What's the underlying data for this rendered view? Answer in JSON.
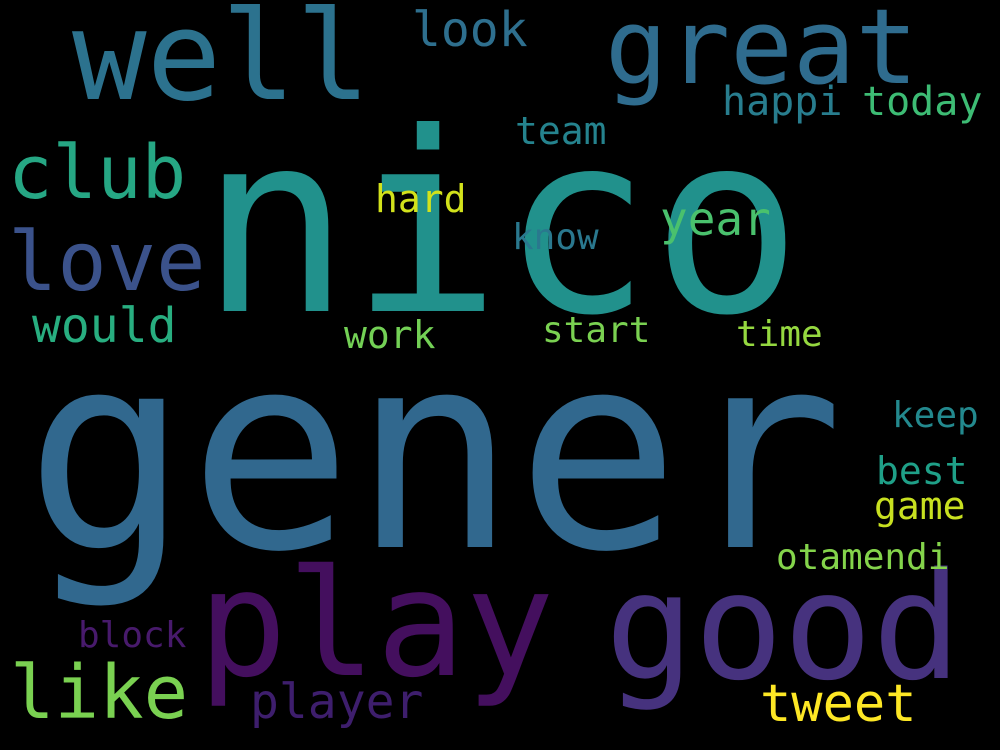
{
  "background": "#000000",
  "words": [
    {
      "id": "gener",
      "text": "gener",
      "color": "#31688e"
    },
    {
      "id": "nico",
      "text": "nico",
      "color": "#21918c"
    },
    {
      "id": "play",
      "text": "play",
      "color": "#440f5e"
    },
    {
      "id": "good",
      "text": "good",
      "color": "#46327e"
    },
    {
      "id": "well",
      "text": "well",
      "color": "#2c728e"
    },
    {
      "id": "great",
      "text": "great",
      "color": "#2f6c8e"
    },
    {
      "id": "love",
      "text": "love",
      "color": "#3b528b"
    },
    {
      "id": "club",
      "text": "club",
      "color": "#26a784"
    },
    {
      "id": "like",
      "text": "like",
      "color": "#7ad151"
    },
    {
      "id": "tweet",
      "text": "tweet",
      "color": "#fde725"
    },
    {
      "id": "would",
      "text": "would",
      "color": "#28ae80"
    },
    {
      "id": "player",
      "text": "player",
      "color": "#3e1e6d"
    },
    {
      "id": "look",
      "text": "look",
      "color": "#2e6f8e"
    },
    {
      "id": "year",
      "text": "year",
      "color": "#4ac16d"
    },
    {
      "id": "happi",
      "text": "happi",
      "color": "#287d8e"
    },
    {
      "id": "today",
      "text": "today",
      "color": "#3dbc74"
    },
    {
      "id": "team",
      "text": "team",
      "color": "#25838e"
    },
    {
      "id": "hard",
      "text": "hard",
      "color": "#d2e21b"
    },
    {
      "id": "know",
      "text": "know",
      "color": "#2a788e"
    },
    {
      "id": "work",
      "text": "work",
      "color": "#73d055"
    },
    {
      "id": "start",
      "text": "start",
      "color": "#7ad151"
    },
    {
      "id": "time",
      "text": "time",
      "color": "#95d840"
    },
    {
      "id": "keep",
      "text": "keep",
      "color": "#23898e"
    },
    {
      "id": "best",
      "text": "best",
      "color": "#1fa088"
    },
    {
      "id": "game",
      "text": "game",
      "color": "#c8e020"
    },
    {
      "id": "otamendi",
      "text": "otamendi",
      "color": "#84d44b"
    },
    {
      "id": "block",
      "text": "block",
      "color": "#481a6c"
    }
  ]
}
